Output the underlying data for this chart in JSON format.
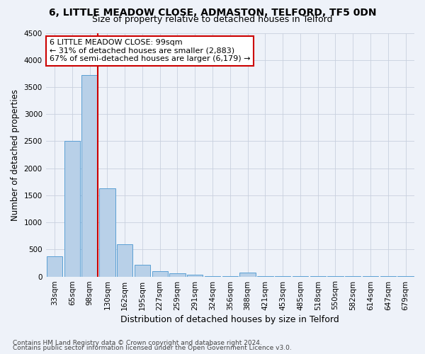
{
  "title": "6, LITTLE MEADOW CLOSE, ADMASTON, TELFORD, TF5 0DN",
  "subtitle": "Size of property relative to detached houses in Telford",
  "xlabel": "Distribution of detached houses by size in Telford",
  "ylabel": "Number of detached properties",
  "footer_line1": "Contains HM Land Registry data © Crown copyright and database right 2024.",
  "footer_line2": "Contains public sector information licensed under the Open Government Licence v3.0.",
  "categories": [
    "33sqm",
    "65sqm",
    "98sqm",
    "130sqm",
    "162sqm",
    "195sqm",
    "227sqm",
    "259sqm",
    "291sqm",
    "324sqm",
    "356sqm",
    "388sqm",
    "421sqm",
    "453sqm",
    "485sqm",
    "518sqm",
    "550sqm",
    "582sqm",
    "614sqm",
    "647sqm",
    "679sqm"
  ],
  "values": [
    370,
    2500,
    3720,
    1630,
    590,
    220,
    100,
    60,
    40,
    5,
    5,
    70,
    5,
    5,
    5,
    5,
    5,
    5,
    5,
    5,
    5
  ],
  "bar_color": "#b8d0e8",
  "bar_edge_color": "#5a9fd4",
  "highlight_bar_index": 2,
  "highlight_color": "#cc0000",
  "ylim": [
    0,
    4500
  ],
  "yticks": [
    0,
    500,
    1000,
    1500,
    2000,
    2500,
    3000,
    3500,
    4000,
    4500
  ],
  "annotation_line1": "6 LITTLE MEADOW CLOSE: 99sqm",
  "annotation_line2": "← 31% of detached houses are smaller (2,883)",
  "annotation_line3": "67% of semi-detached houses are larger (6,179) →",
  "title_fontsize": 10,
  "subtitle_fontsize": 9,
  "axis_label_fontsize": 8.5,
  "tick_fontsize": 7.5,
  "annotation_fontsize": 8,
  "footer_fontsize": 6.5,
  "bg_color": "#eef2f9",
  "grid_color": "#c8d0de"
}
